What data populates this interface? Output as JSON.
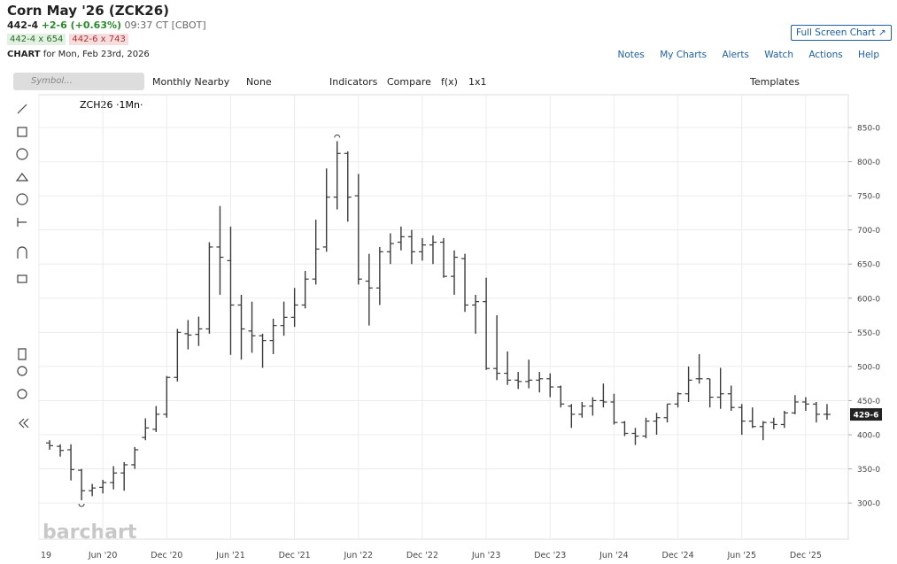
{
  "header": {
    "title": "Corn May '26 (ZCK26)",
    "price": "442-4",
    "change": "+2-6 (+0.63%)",
    "time": "09:37 CT [CBOT]",
    "bid": "442-4 x 654",
    "ask": "442-6 x 743",
    "chart_word": "CHART",
    "chart_date": "for Mon, Feb 23rd, 2026",
    "full_screen": "Full Screen Chart"
  },
  "links": [
    "Notes",
    "My Charts",
    "Alerts",
    "Watch",
    "Actions",
    "Help"
  ],
  "toolbar": {
    "search": "Symbol...",
    "period": "Monthly Nearby",
    "none": "None",
    "indicators": "Indicators",
    "compare": "Compare",
    "fx": "f(x)",
    "layout": "1x1",
    "templates": "Templates"
  },
  "chart_data": {
    "type": "ohlc",
    "symbol": "ZCH26 ·1Mn·",
    "watermark": "barchart",
    "color": "#3a3a3a",
    "x": [
      "2020-01",
      "2020-02",
      "2020-03",
      "2020-04",
      "2020-05",
      "2020-06",
      "2020-07",
      "2020-08",
      "2020-09",
      "2020-10",
      "2020-11",
      "2020-12",
      "2021-01",
      "2021-02",
      "2021-03",
      "2021-04",
      "2021-05",
      "2021-06",
      "2021-07",
      "2021-08",
      "2021-09",
      "2021-10",
      "2021-11",
      "2021-12",
      "2022-01",
      "2022-02",
      "2022-03",
      "2022-04",
      "2022-05",
      "2022-06",
      "2022-07",
      "2022-08",
      "2022-09",
      "2022-10",
      "2022-11",
      "2022-12",
      "2023-01",
      "2023-02",
      "2023-03",
      "2023-04",
      "2023-05",
      "2023-06",
      "2023-07",
      "2023-08",
      "2023-09",
      "2023-10",
      "2023-11",
      "2023-12",
      "2024-01",
      "2024-02",
      "2024-03",
      "2024-04",
      "2024-05",
      "2024-06",
      "2024-07",
      "2024-08",
      "2024-09",
      "2024-10",
      "2024-11",
      "2024-12",
      "2025-01",
      "2025-02",
      "2025-03",
      "2025-04",
      "2025-05",
      "2025-06",
      "2025-07",
      "2025-08",
      "2025-09",
      "2025-10",
      "2025-11",
      "2025-12",
      "2026-01",
      "2026-02"
    ],
    "open": [
      388,
      383,
      378,
      348,
      318,
      323,
      330,
      344,
      356,
      396,
      408,
      430,
      484,
      548,
      547,
      555,
      675,
      655,
      590,
      552,
      545,
      538,
      560,
      572,
      590,
      628,
      675,
      748,
      812,
      750,
      625,
      615,
      668,
      682,
      690,
      668,
      678,
      682,
      632,
      658,
      590,
      595,
      497,
      490,
      480,
      478,
      480,
      482,
      470,
      442,
      430,
      442,
      450,
      448,
      418,
      402,
      398,
      420,
      425,
      445,
      460,
      482,
      482,
      455,
      460,
      440,
      420,
      412,
      418,
      415,
      432,
      448,
      445,
      430
    ],
    "high": [
      392,
      386,
      386,
      350,
      328,
      334,
      354,
      360,
      382,
      424,
      442,
      486,
      555,
      568,
      573,
      682,
      735,
      705,
      605,
      595,
      548,
      570,
      595,
      615,
      640,
      715,
      790,
      830,
      815,
      782,
      665,
      675,
      695,
      705,
      700,
      688,
      692,
      688,
      670,
      665,
      605,
      630,
      575,
      522,
      492,
      510,
      492,
      490,
      472,
      445,
      448,
      455,
      475,
      460,
      420,
      410,
      425,
      432,
      445,
      462,
      500,
      518,
      482,
      498,
      472,
      445,
      440,
      420,
      425,
      435,
      458,
      455,
      448,
      445
    ],
    "low": [
      378,
      368,
      333,
      304,
      310,
      314,
      320,
      318,
      350,
      392,
      404,
      425,
      478,
      525,
      530,
      548,
      605,
      517,
      510,
      520,
      498,
      518,
      545,
      558,
      585,
      620,
      668,
      730,
      712,
      620,
      560,
      590,
      650,
      670,
      650,
      655,
      650,
      630,
      605,
      580,
      548,
      495,
      480,
      473,
      467,
      468,
      462,
      455,
      440,
      410,
      425,
      428,
      440,
      415,
      398,
      385,
      395,
      400,
      418,
      440,
      448,
      475,
      440,
      438,
      435,
      400,
      410,
      392,
      408,
      410,
      430,
      435,
      418,
      422
    ],
    "close": [
      384,
      377,
      349,
      318,
      322,
      330,
      344,
      356,
      378,
      410,
      430,
      484,
      550,
      546,
      555,
      675,
      660,
      590,
      555,
      545,
      538,
      560,
      572,
      590,
      628,
      672,
      748,
      812,
      748,
      628,
      615,
      668,
      680,
      690,
      668,
      678,
      682,
      632,
      660,
      590,
      595,
      497,
      490,
      480,
      478,
      480,
      482,
      470,
      445,
      430,
      442,
      450,
      448,
      418,
      402,
      398,
      420,
      425,
      445,
      460,
      480,
      482,
      455,
      460,
      440,
      420,
      412,
      418,
      415,
      432,
      448,
      445,
      430,
      429.75
    ],
    "last_label": "429-6",
    "xlim": [
      "2019-12",
      "2026-04"
    ],
    "xticks": [
      {
        "value": "2019-12",
        "label": "19"
      },
      {
        "value": "2020-06",
        "label": "Jun '20"
      },
      {
        "value": "2020-12",
        "label": "Dec '20"
      },
      {
        "value": "2021-06",
        "label": "Jun '21"
      },
      {
        "value": "2021-12",
        "label": "Dec '21"
      },
      {
        "value": "2022-06",
        "label": "Jun '22"
      },
      {
        "value": "2022-12",
        "label": "Dec '22"
      },
      {
        "value": "2023-06",
        "label": "Jun '23"
      },
      {
        "value": "2023-12",
        "label": "Dec '23"
      },
      {
        "value": "2024-06",
        "label": "Jun '24"
      },
      {
        "value": "2024-12",
        "label": "Dec '24"
      },
      {
        "value": "2025-06",
        "label": "Jun '25"
      },
      {
        "value": "2025-12",
        "label": "Dec '25"
      }
    ],
    "ylim": [
      247,
      898
    ],
    "yticks": [
      {
        "value": 300,
        "label": "300-0"
      },
      {
        "value": 350,
        "label": "350-0"
      },
      {
        "value": 400,
        "label": "400-0"
      },
      {
        "value": 450,
        "label": "450-0"
      },
      {
        "value": 500,
        "label": "500-0"
      },
      {
        "value": 550,
        "label": "550-0"
      },
      {
        "value": 600,
        "label": "600-0"
      },
      {
        "value": 650,
        "label": "650-0"
      },
      {
        "value": 700,
        "label": "700-0"
      },
      {
        "value": 750,
        "label": "750-0"
      },
      {
        "value": 800,
        "label": "800-0"
      },
      {
        "value": 850,
        "label": "850-0"
      }
    ],
    "grid": true
  }
}
